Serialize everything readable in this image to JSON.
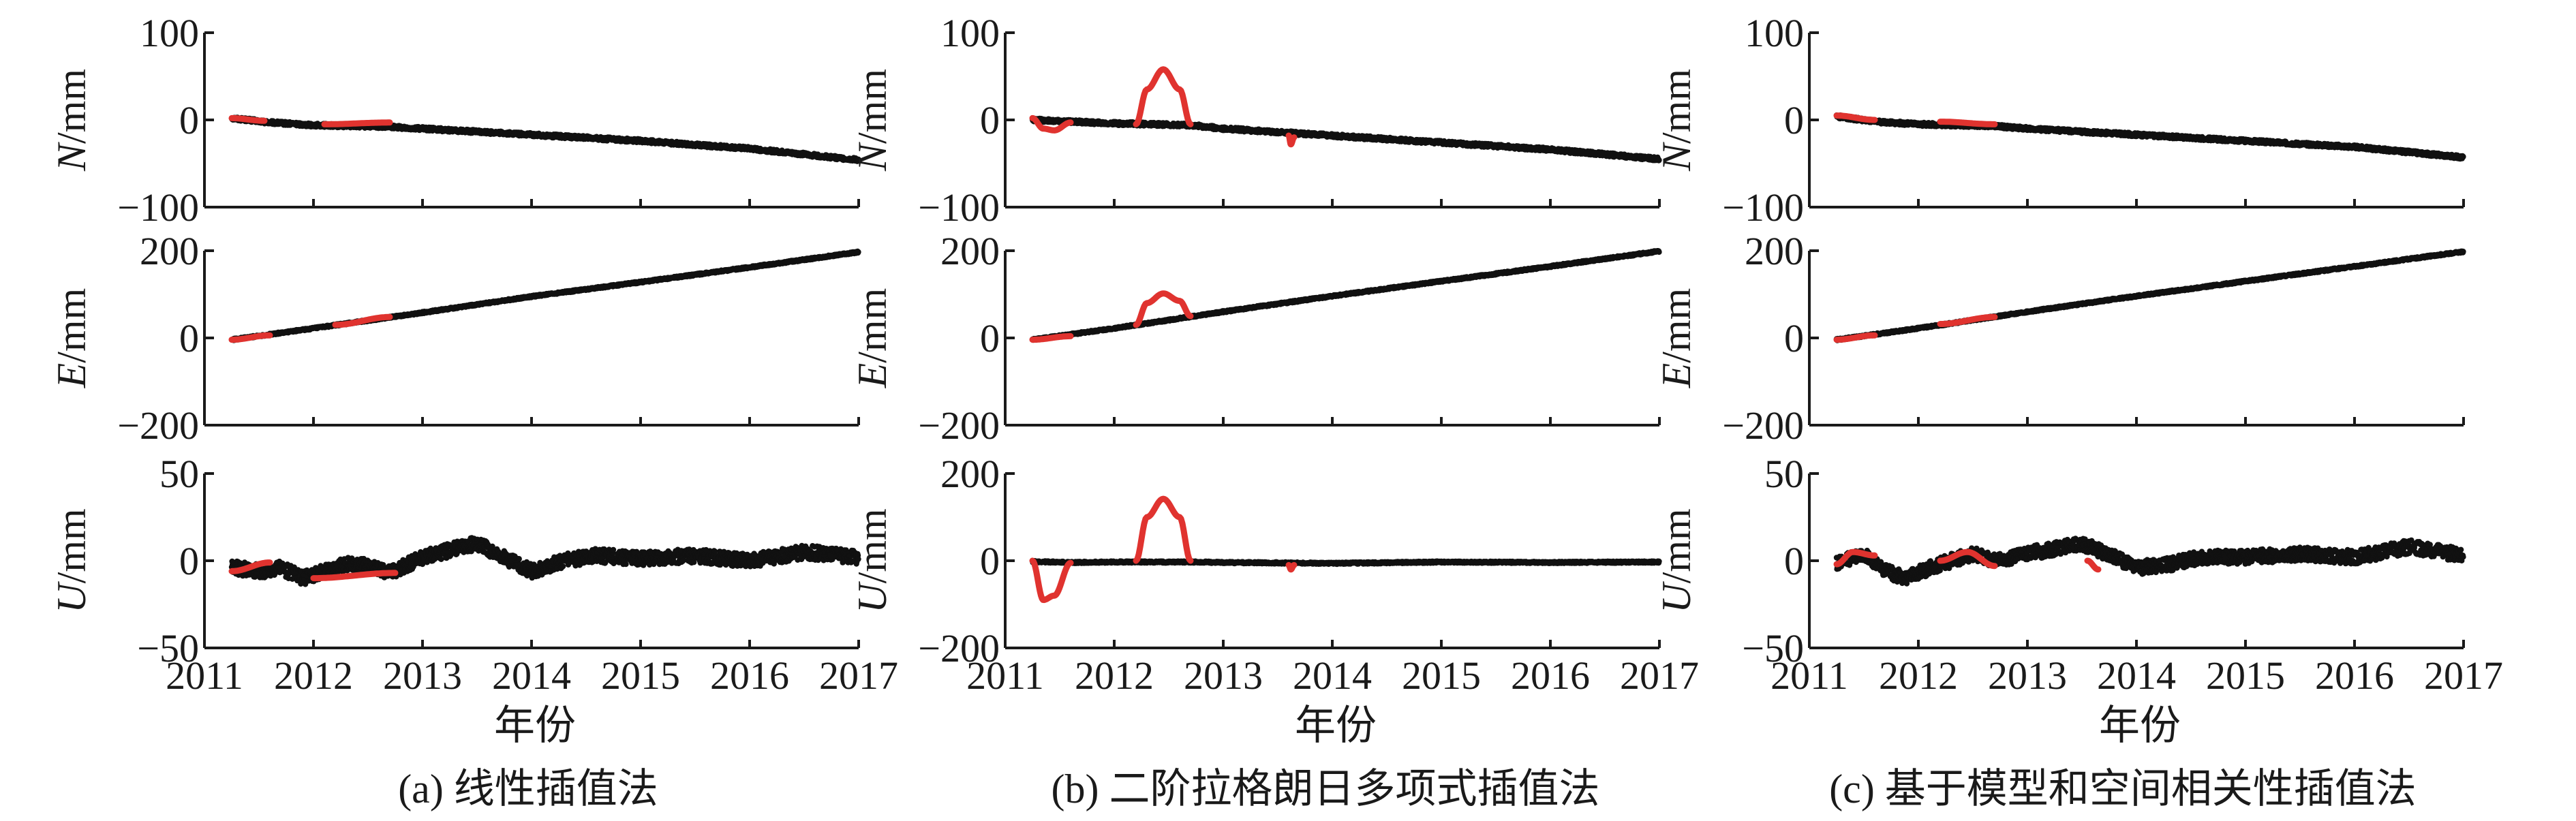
{
  "figure": {
    "colors": {
      "observed": "#111111",
      "interpolated": "#e0332f",
      "axis": "#1a1a1a"
    },
    "panels": [
      {
        "caption": "(a) 线性插值法",
        "xlabel": "年份"
      },
      {
        "caption": "(b) 二阶拉格朗日多项式插值法",
        "xlabel": "年份"
      },
      {
        "caption": "(c) 基于模型和空间相关性插值法",
        "xlabel": "年份"
      }
    ]
  },
  "chart_data": [
    {
      "type": "scatter",
      "panel": "a",
      "component": "N",
      "ylabel": [
        "N",
        "/mm"
      ],
      "xlim": [
        2011,
        2017
      ],
      "ylim": [
        -100,
        100
      ],
      "yticks": [
        "100",
        "0",
        "−100"
      ],
      "xticks": [],
      "noise": 2,
      "trend": [
        [
          2011.25,
          2
        ],
        [
          2011.6,
          -3
        ],
        [
          2012.0,
          -6
        ],
        [
          2012.7,
          -8
        ],
        [
          2013.0,
          -10
        ],
        [
          2014.0,
          -17
        ],
        [
          2015.0,
          -24
        ],
        [
          2016.0,
          -33
        ],
        [
          2017.0,
          -46
        ]
      ],
      "interpolated": [
        {
          "x": [
            2011.25,
            2011.55
          ],
          "y": [
            2,
            -1
          ]
        },
        {
          "x": [
            2012.1,
            2012.7
          ],
          "y": [
            -5,
            -3
          ]
        }
      ]
    },
    {
      "type": "scatter",
      "panel": "a",
      "component": "E",
      "ylabel": [
        "E",
        "/mm"
      ],
      "xlim": [
        2011,
        2017
      ],
      "ylim": [
        -200,
        200
      ],
      "yticks": [
        "200",
        "0",
        "−200"
      ],
      "xticks": [],
      "noise": 2,
      "trend": [
        [
          2011.25,
          -4
        ],
        [
          2012.0,
          22
        ],
        [
          2013.0,
          58
        ],
        [
          2014.0,
          95
        ],
        [
          2015.0,
          128
        ],
        [
          2016.0,
          162
        ],
        [
          2017.0,
          197
        ]
      ],
      "interpolated": [
        {
          "x": [
            2011.25,
            2011.6
          ],
          "y": [
            -4,
            6
          ]
        },
        {
          "x": [
            2012.2,
            2012.7
          ],
          "y": [
            30,
            48
          ]
        }
      ]
    },
    {
      "type": "scatter",
      "panel": "a",
      "component": "U",
      "ylabel": [
        "U",
        "/mm"
      ],
      "xlim": [
        2011,
        2017
      ],
      "ylim": [
        -50,
        50
      ],
      "yticks": [
        "50",
        "0",
        "−50"
      ],
      "xticks": [
        "2011",
        "2012",
        "2013",
        "2014",
        "2015",
        "2016",
        "2017"
      ],
      "noise": 4,
      "trend": [
        [
          2011.25,
          -4
        ],
        [
          2011.55,
          -6
        ],
        [
          2011.7,
          -4
        ],
        [
          2011.9,
          -10
        ],
        [
          2012.1,
          -6
        ],
        [
          2012.3,
          -2
        ],
        [
          2012.5,
          -3
        ],
        [
          2012.7,
          -7
        ],
        [
          2013.0,
          2
        ],
        [
          2013.5,
          10
        ],
        [
          2013.8,
          0
        ],
        [
          2014.0,
          -6
        ],
        [
          2014.3,
          0
        ],
        [
          2014.6,
          3
        ],
        [
          2015.0,
          1
        ],
        [
          2015.5,
          3
        ],
        [
          2016.0,
          0
        ],
        [
          2016.5,
          5
        ],
        [
          2017.0,
          2
        ]
      ],
      "interpolated": [
        {
          "x": [
            2011.25,
            2011.6
          ],
          "y": [
            -6,
            -1
          ]
        },
        {
          "x": [
            2012.0,
            2012.75
          ],
          "y": [
            -10,
            -7
          ]
        }
      ]
    },
    {
      "type": "scatter",
      "panel": "b",
      "component": "N",
      "ylabel": [
        "N",
        "/mm"
      ],
      "xlim": [
        2011,
        2017
      ],
      "ylim": [
        -100,
        100
      ],
      "yticks": [
        "100",
        "0",
        "−100"
      ],
      "xticks": [],
      "noise": 2,
      "trend": [
        [
          2011.25,
          0
        ],
        [
          2011.6,
          -2
        ],
        [
          2012.0,
          -4
        ],
        [
          2012.7,
          -6
        ],
        [
          2013.0,
          -10
        ],
        [
          2014.0,
          -18
        ],
        [
          2015.0,
          -26
        ],
        [
          2016.0,
          -34
        ],
        [
          2017.0,
          -45
        ]
      ],
      "interpolated": [
        {
          "x": [
            2011.25,
            2011.35,
            2011.45,
            2011.6
          ],
          "y": [
            2,
            -10,
            -12,
            -3
          ]
        },
        {
          "x": [
            2012.2,
            2012.3,
            2012.45,
            2012.6,
            2012.7
          ],
          "y": [
            -5,
            35,
            58,
            35,
            -5
          ]
        },
        {
          "x": [
            2013.6,
            2013.62,
            2013.65
          ],
          "y": [
            -18,
            -28,
            -20
          ]
        }
      ]
    },
    {
      "type": "scatter",
      "panel": "b",
      "component": "E",
      "ylabel": [
        "E",
        "/mm"
      ],
      "xlim": [
        2011,
        2017
      ],
      "ylim": [
        -200,
        200
      ],
      "yticks": [
        "200",
        "0",
        "−200"
      ],
      "xticks": [],
      "noise": 2,
      "trend": [
        [
          2011.25,
          -4
        ],
        [
          2012.0,
          22
        ],
        [
          2013.0,
          60
        ],
        [
          2014.0,
          96
        ],
        [
          2015.0,
          130
        ],
        [
          2016.0,
          164
        ],
        [
          2017.0,
          199
        ]
      ],
      "interpolated": [
        {
          "x": [
            2011.25,
            2011.6
          ],
          "y": [
            -4,
            4
          ]
        },
        {
          "x": [
            2012.2,
            2012.3,
            2012.45,
            2012.6,
            2012.7
          ],
          "y": [
            30,
            80,
            102,
            85,
            50
          ]
        }
      ]
    },
    {
      "type": "scatter",
      "panel": "b",
      "component": "U",
      "ylabel": [
        "U",
        "/mm"
      ],
      "xlim": [
        2011,
        2017
      ],
      "ylim": [
        -200,
        200
      ],
      "yticks": [
        "200",
        "0",
        "−200"
      ],
      "xticks": [
        "2011",
        "2012",
        "2013",
        "2014",
        "2015",
        "2016",
        "2017"
      ],
      "noise": 2,
      "trend": [
        [
          2011.25,
          -2
        ],
        [
          2011.6,
          -4
        ],
        [
          2012.0,
          -3
        ],
        [
          2012.7,
          -3
        ],
        [
          2013.0,
          -4
        ],
        [
          2014.0,
          -6
        ],
        [
          2015.0,
          -3
        ],
        [
          2016.0,
          -4
        ],
        [
          2017.0,
          -3
        ]
      ],
      "interpolated": [
        {
          "x": [
            2011.25,
            2011.35,
            2011.45,
            2011.6
          ],
          "y": [
            0,
            -90,
            -80,
            -5
          ]
        },
        {
          "x": [
            2012.2,
            2012.3,
            2012.45,
            2012.6,
            2012.7
          ],
          "y": [
            0,
            100,
            142,
            100,
            0
          ]
        },
        {
          "x": [
            2013.6,
            2013.62,
            2013.65
          ],
          "y": [
            -10,
            -20,
            -10
          ]
        }
      ]
    },
    {
      "type": "scatter",
      "panel": "c",
      "component": "N",
      "ylabel": [
        "N",
        "/mm"
      ],
      "xlim": [
        2011,
        2017
      ],
      "ylim": [
        -100,
        100
      ],
      "yticks": [
        "100",
        "0",
        "−100"
      ],
      "xticks": [],
      "noise": 2,
      "trend": [
        [
          2011.25,
          4
        ],
        [
          2011.6,
          -2
        ],
        [
          2012.0,
          -5
        ],
        [
          2012.7,
          -7
        ],
        [
          2013.0,
          -10
        ],
        [
          2014.0,
          -17
        ],
        [
          2015.0,
          -24
        ],
        [
          2016.0,
          -31
        ],
        [
          2017.0,
          -43
        ]
      ],
      "interpolated": [
        {
          "x": [
            2011.25,
            2011.6
          ],
          "y": [
            5,
            0
          ]
        },
        {
          "x": [
            2012.2,
            2012.7
          ],
          "y": [
            -2,
            -5
          ]
        }
      ]
    },
    {
      "type": "scatter",
      "panel": "c",
      "component": "E",
      "ylabel": [
        "E",
        "/mm"
      ],
      "xlim": [
        2011,
        2017
      ],
      "ylim": [
        -200,
        200
      ],
      "yticks": [
        "200",
        "0",
        "−200"
      ],
      "xticks": [],
      "noise": 2,
      "trend": [
        [
          2011.25,
          -4
        ],
        [
          2012.0,
          22
        ],
        [
          2013.0,
          60
        ],
        [
          2014.0,
          96
        ],
        [
          2015.0,
          130
        ],
        [
          2016.0,
          164
        ],
        [
          2017.0,
          198
        ]
      ],
      "interpolated": [
        {
          "x": [
            2011.25,
            2011.6
          ],
          "y": [
            -4,
            6
          ]
        },
        {
          "x": [
            2012.2,
            2012.7
          ],
          "y": [
            32,
            48
          ]
        }
      ]
    },
    {
      "type": "scatter",
      "panel": "c",
      "component": "U",
      "ylabel": [
        "U",
        "/mm"
      ],
      "xlim": [
        2011,
        2017
      ],
      "ylim": [
        -50,
        50
      ],
      "yticks": [
        "50",
        "0",
        "−50"
      ],
      "xticks": [
        "2011",
        "2012",
        "2013",
        "2014",
        "2015",
        "2016",
        "2017"
      ],
      "noise": 4,
      "trend": [
        [
          2011.25,
          -2
        ],
        [
          2011.5,
          4
        ],
        [
          2011.7,
          -6
        ],
        [
          2011.9,
          -10
        ],
        [
          2012.1,
          -4
        ],
        [
          2012.5,
          4
        ],
        [
          2012.7,
          0
        ],
        [
          2013.0,
          4
        ],
        [
          2013.5,
          10
        ],
        [
          2013.8,
          2
        ],
        [
          2014.0,
          -4
        ],
        [
          2014.3,
          -2
        ],
        [
          2014.6,
          2
        ],
        [
          2015.0,
          2
        ],
        [
          2015.5,
          4
        ],
        [
          2016.0,
          2
        ],
        [
          2016.5,
          8
        ],
        [
          2017.0,
          3
        ]
      ],
      "interpolated": [
        {
          "x": [
            2011.25,
            2011.4,
            2011.6
          ],
          "y": [
            -2,
            5,
            3
          ]
        },
        {
          "x": [
            2012.2,
            2012.45,
            2012.7
          ],
          "y": [
            0,
            5,
            -3
          ]
        },
        {
          "x": [
            2013.55,
            2013.65
          ],
          "y": [
            0,
            -5
          ]
        }
      ]
    }
  ]
}
